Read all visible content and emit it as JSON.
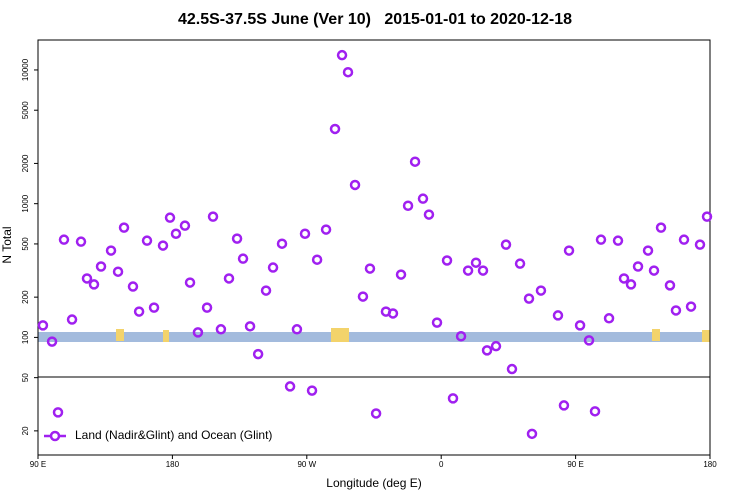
{
  "chart_data": {
    "type": "scatter",
    "title": "42.5S-37.5S June (Ver 10)   2015-01-01 to 2020-12-18",
    "x_label": "Longitude (deg E)",
    "y_label": "N Total",
    "ylog": true,
    "grid": false,
    "legend": "bottomleft",
    "xlim": [
      90,
      540
    ],
    "ylim": [
      13.2,
      16750
    ],
    "xticks": [
      {
        "value": 90,
        "label": "90 E"
      },
      {
        "value": 180,
        "label": "180"
      },
      {
        "value": 270,
        "label": "90 W"
      },
      {
        "value": 360,
        "label": "0"
      },
      {
        "value": 450,
        "label": "90 E"
      },
      {
        "value": 540,
        "label": "180"
      }
    ],
    "yticks": [
      20,
      50,
      100,
      200,
      500,
      1000,
      2000,
      5000,
      10000
    ],
    "series": [
      {
        "name": "Land (Nadir&Glint) and Ocean (Glint)",
        "color": "#a020f0",
        "x": [
          93.3,
          99.4,
          103.4,
          107.4,
          112.8,
          118.8,
          122.8,
          127.5,
          132.2,
          138.9,
          143.6,
          147.6,
          153.6,
          157.7,
          163,
          167.7,
          173.7,
          178.4,
          182.4,
          188.4,
          191.8,
          197.1,
          203.2,
          207.2,
          212.5,
          217.9,
          223.3,
          227.3,
          232,
          237.4,
          242.7,
          247.4,
          253.4,
          258.8,
          263.4,
          268.8,
          273.5,
          276.9,
          282.9,
          288.9,
          293.6,
          297.6,
          302.3,
          307.6,
          312.3,
          316.4,
          323,
          327.7,
          333.1,
          337.8,
          342.5,
          347.8,
          351.8,
          357.2,
          363.9,
          367.9,
          373.3,
          378,
          383.3,
          388,
          390.7,
          396.7,
          403.4,
          407.4,
          412.8,
          418.8,
          420.8,
          426.8,
          438.2,
          442.2,
          445.6,
          453,
          459,
          463,
          467,
          472.4,
          478.4,
          482.4,
          487.1,
          491.8,
          498.5,
          502.5,
          507.2,
          513.2,
          517.2,
          522.6,
          527.3,
          533.3,
          538
        ],
        "values": [
          123,
          93,
          27.5,
          538,
          136,
          520,
          276,
          249,
          339,
          446,
          310,
          662,
          240,
          156,
          529,
          167,
          486,
          786,
          596,
          685,
          257,
          109,
          167,
          800,
          115,
          276,
          548,
          388,
          121,
          75,
          224,
          333,
          502,
          43,
          115,
          596,
          40,
          381,
          640,
          3620,
          12900,
          9620,
          1380,
          202,
          327,
          27,
          156,
          151,
          295,
          965,
          2060,
          1090,
          829,
          129,
          376,
          35,
          102,
          316,
          362,
          316,
          80,
          86,
          494,
          58,
          356,
          195,
          19,
          224,
          146,
          31,
          446,
          123,
          95,
          28,
          538,
          139,
          529,
          276,
          249,
          339,
          446,
          316,
          662,
          245,
          159,
          538,
          170,
          494,
          800
        ]
      }
    ]
  }
}
